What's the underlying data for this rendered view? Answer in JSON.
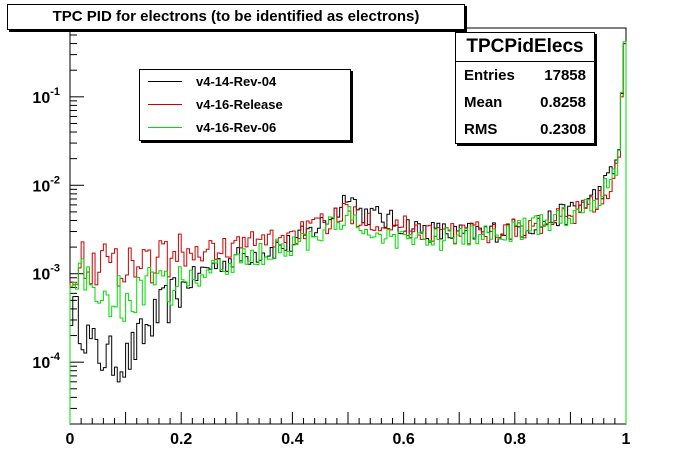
{
  "chart_data": {
    "type": "line",
    "title": "TPC PID for electrons (to be identified as electrons)",
    "xlabel": "",
    "ylabel": "",
    "xlim": [
      0,
      1
    ],
    "ylim": [
      2e-05,
      0.6
    ],
    "y_scale": "log",
    "x_ticks": [
      "0",
      "0.2",
      "0.4",
      "0.6",
      "0.8",
      "1"
    ],
    "y_ticks": [
      {
        "base": "10",
        "exp": "-1",
        "value": 0.1
      },
      {
        "base": "10",
        "exp": "-2",
        "value": 0.01
      },
      {
        "base": "10",
        "exp": "-3",
        "value": 0.001
      },
      {
        "base": "10",
        "exp": "-4",
        "value": 0.0001
      }
    ],
    "legend_placement": "top-left",
    "bins": 200,
    "stats": {
      "name": "TPCPidElecs",
      "rows": [
        {
          "label": "Entries",
          "value": "17858"
        },
        {
          "label": "Mean",
          "value": "0.8258"
        },
        {
          "label": "RMS",
          "value": "0.2308"
        }
      ]
    },
    "series": [
      {
        "name": "v4-14-Rev-04",
        "color": "#000000",
        "anchors": [
          [
            0.0,
            0.00045
          ],
          [
            0.05,
            0.00012
          ],
          [
            0.1,
            0.0001
          ],
          [
            0.15,
            0.0003
          ],
          [
            0.2,
            0.0007
          ],
          [
            0.25,
            0.0012
          ],
          [
            0.3,
            0.0015
          ],
          [
            0.35,
            0.0018
          ],
          [
            0.4,
            0.0022
          ],
          [
            0.45,
            0.0035
          ],
          [
            0.49,
            0.006
          ],
          [
            0.5,
            0.0095
          ],
          [
            0.52,
            0.005
          ],
          [
            0.55,
            0.0045
          ],
          [
            0.6,
            0.0035
          ],
          [
            0.65,
            0.003
          ],
          [
            0.7,
            0.0028
          ],
          [
            0.75,
            0.003
          ],
          [
            0.8,
            0.0032
          ],
          [
            0.85,
            0.0038
          ],
          [
            0.9,
            0.005
          ],
          [
            0.95,
            0.008
          ],
          [
            0.98,
            0.015
          ],
          [
            0.99,
            0.03
          ],
          [
            0.995,
            0.4
          ],
          [
            1.0,
            0.4
          ]
        ]
      },
      {
        "name": "v4-16-Release",
        "color": "#cc0000",
        "anchors": [
          [
            0.0,
            0.0013
          ],
          [
            0.05,
            0.0013
          ],
          [
            0.1,
            0.0013
          ],
          [
            0.15,
            0.0014
          ],
          [
            0.2,
            0.0016
          ],
          [
            0.25,
            0.0018
          ],
          [
            0.3,
            0.0021
          ],
          [
            0.35,
            0.0024
          ],
          [
            0.4,
            0.0028
          ],
          [
            0.45,
            0.0035
          ],
          [
            0.49,
            0.0045
          ],
          [
            0.5,
            0.0052
          ],
          [
            0.52,
            0.0045
          ],
          [
            0.55,
            0.004
          ],
          [
            0.6,
            0.0034
          ],
          [
            0.65,
            0.003
          ],
          [
            0.7,
            0.0028
          ],
          [
            0.75,
            0.003
          ],
          [
            0.8,
            0.0032
          ],
          [
            0.85,
            0.0036
          ],
          [
            0.9,
            0.0045
          ],
          [
            0.95,
            0.0065
          ],
          [
            0.98,
            0.012
          ],
          [
            0.99,
            0.025
          ],
          [
            0.995,
            0.4
          ],
          [
            1.0,
            0.4
          ]
        ]
      },
      {
        "name": "v4-16-Rev-06",
        "color": "#00dd00",
        "anchors": [
          [
            0.0,
            0.0012
          ],
          [
            0.05,
            0.0006
          ],
          [
            0.1,
            0.0005
          ],
          [
            0.15,
            0.0007
          ],
          [
            0.2,
            0.0008
          ],
          [
            0.25,
            0.001
          ],
          [
            0.3,
            0.0014
          ],
          [
            0.35,
            0.0017
          ],
          [
            0.4,
            0.0021
          ],
          [
            0.45,
            0.0028
          ],
          [
            0.49,
            0.004
          ],
          [
            0.5,
            0.0045
          ],
          [
            0.52,
            0.003
          ],
          [
            0.55,
            0.0028
          ],
          [
            0.6,
            0.0025
          ],
          [
            0.65,
            0.0024
          ],
          [
            0.7,
            0.0025
          ],
          [
            0.75,
            0.0028
          ],
          [
            0.8,
            0.003
          ],
          [
            0.85,
            0.0036
          ],
          [
            0.9,
            0.0048
          ],
          [
            0.95,
            0.0072
          ],
          [
            0.98,
            0.014
          ],
          [
            0.99,
            0.03
          ],
          [
            0.995,
            0.42
          ],
          [
            1.0,
            0.42
          ]
        ]
      }
    ]
  }
}
